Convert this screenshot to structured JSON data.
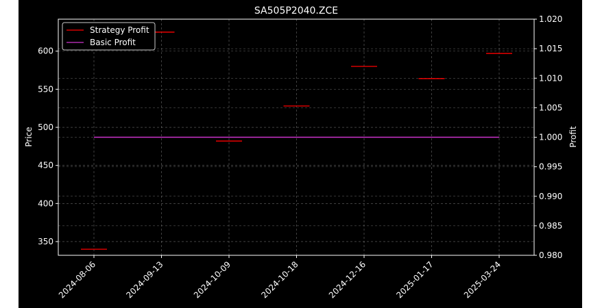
{
  "chart_data": {
    "type": "line",
    "title": "SA505P2040.ZCE",
    "ylabel_left": "Price",
    "ylabel_right": "Profit",
    "x_ticks": [
      "2024-08-06",
      "2024-09-13",
      "2024-10-09",
      "2024-10-18",
      "2024-12-16",
      "2025-01-17",
      "2025-03-24"
    ],
    "left_axis": {
      "ylim": [
        332,
        642
      ],
      "ticks": [
        350,
        400,
        450,
        500,
        550,
        600
      ]
    },
    "right_axis": {
      "ylim": [
        0.98,
        1.02
      ],
      "ticks": [
        0.98,
        0.985,
        0.99,
        0.995,
        1.0,
        1.005,
        1.01,
        1.015,
        1.02
      ],
      "tick_labels": [
        "0.980",
        "0.985",
        "0.990",
        "0.995",
        "1.000",
        "1.005",
        "1.010",
        "1.015",
        "1.020"
      ]
    },
    "grid": true,
    "legend_position": "top-left",
    "background": "#000000",
    "foreground": "#ffffff",
    "series": [
      {
        "name": "Strategy Profit",
        "color": "#ff0000",
        "style": "short-horizontal-segments",
        "x_index": [
          0,
          1,
          2,
          3,
          4,
          5,
          6
        ],
        "values": [
          340,
          625,
          482,
          528,
          580,
          564,
          597
        ]
      },
      {
        "name": "Basic Profit",
        "color": "#cc33cc",
        "axis": "right",
        "x_index": [
          0,
          6
        ],
        "values": [
          1.0,
          1.0
        ]
      }
    ]
  }
}
